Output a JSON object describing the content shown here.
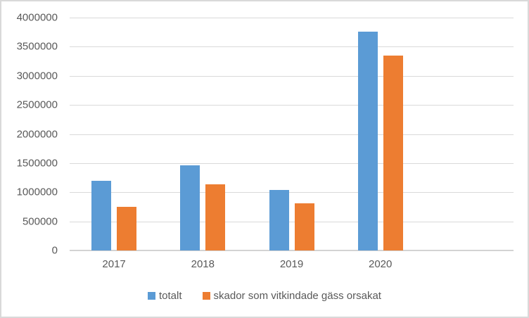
{
  "chart_data": {
    "type": "bar",
    "categories": [
      "2017",
      "2018",
      "2019",
      "2020"
    ],
    "category_slots": 5,
    "series": [
      {
        "name": "totalt",
        "color": "#5B9BD5",
        "values": [
          1200000,
          1460000,
          1040000,
          3760000
        ]
      },
      {
        "name": "skador som vitkindade gäss orsakat",
        "color": "#ED7D31",
        "values": [
          750000,
          1140000,
          810000,
          3350000
        ]
      }
    ],
    "ylim": [
      0,
      4000000
    ],
    "ytick_step": 500000,
    "y_ticks": [
      "0",
      "500000",
      "1000000",
      "1500000",
      "2000000",
      "2500000",
      "3000000",
      "3500000",
      "4000000"
    ],
    "grid": true,
    "legend_position": "bottom",
    "colors": {
      "grid": "#D9D9D9",
      "axis_line": "#D3D3D3",
      "tick_text": "#595959",
      "frame_border": "#D9D9D9",
      "background": "#FFFFFF"
    }
  }
}
